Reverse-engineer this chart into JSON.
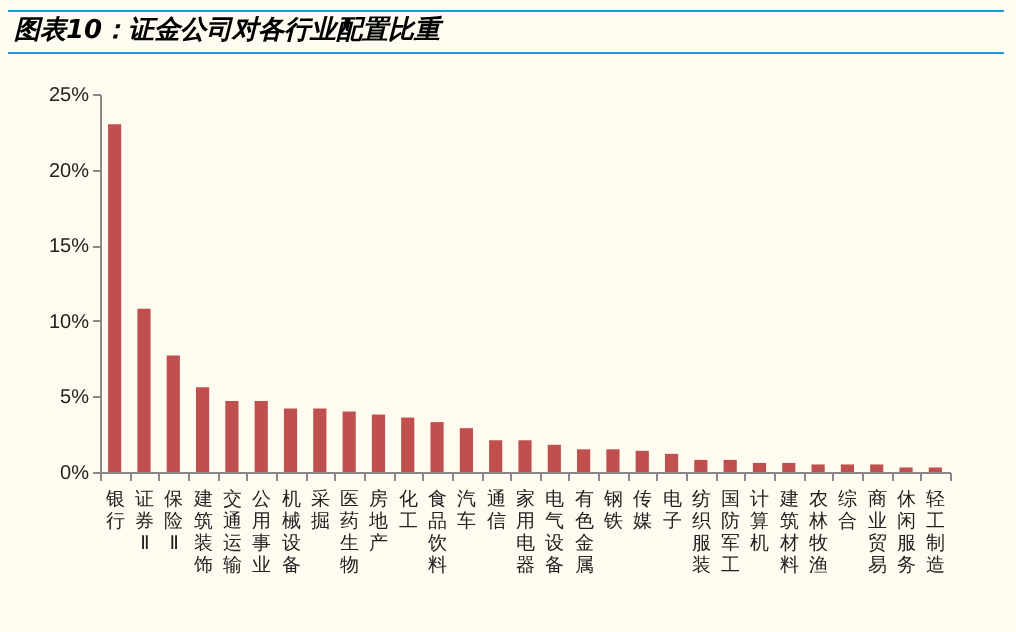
{
  "chart_data": {
    "type": "bar",
    "title": "图表10：证金公司对各行业配置比重",
    "categories": [
      "银行",
      "证券Ⅱ",
      "保险Ⅱ",
      "建筑装饰",
      "交通运输",
      "公用事业",
      "机械设备",
      "采掘",
      "医药生物",
      "房地产",
      "化工",
      "食品饮料",
      "汽车",
      "通信",
      "家用电器",
      "电气设备",
      "有色金属",
      "钢铁",
      "传媒",
      "电子",
      "纺织服装",
      "国防军工",
      "计算机",
      "建筑材料",
      "农林牧渔",
      "综合",
      "商业贸易",
      "休闲服务",
      "轻工制造"
    ],
    "values": [
      23.0,
      10.8,
      7.7,
      5.6,
      4.7,
      4.7,
      4.2,
      4.2,
      4.0,
      3.8,
      3.6,
      3.3,
      2.9,
      2.1,
      2.1,
      1.8,
      1.5,
      1.5,
      1.4,
      1.2,
      0.8,
      0.8,
      0.6,
      0.6,
      0.5,
      0.5,
      0.5,
      0.3,
      0.3
    ],
    "color": "#c0504d",
    "ylim": [
      0,
      25
    ],
    "yticks": [
      {
        "value": 0,
        "label": "0%"
      },
      {
        "value": 5,
        "label": "5%"
      },
      {
        "value": 10,
        "label": "10%"
      },
      {
        "value": 15,
        "label": "15%"
      },
      {
        "value": 20,
        "label": "20%"
      },
      {
        "value": 25,
        "label": "25%"
      }
    ]
  }
}
